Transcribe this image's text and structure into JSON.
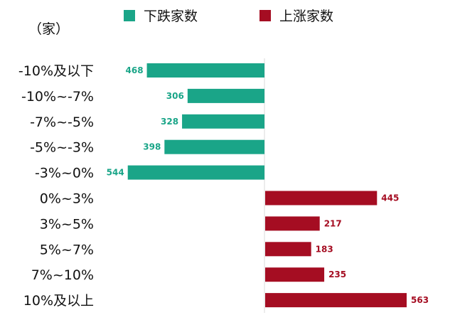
{
  "chart_data": {
    "type": "bar",
    "orientation": "horizontal",
    "unit_label": "（家）",
    "categories": [
      "-10%及以下",
      "-10%~-7%",
      "-7%~-5%",
      "-5%~-3%",
      "-3%~0%",
      "0%~3%",
      "3%~5%",
      "5%~7%",
      "7%~10%",
      "10%及以上"
    ],
    "series": [
      {
        "name": "下跌家数",
        "color": "#1aa588",
        "values": [
          468,
          306,
          328,
          398,
          544,
          null,
          null,
          null,
          null,
          null
        ]
      },
      {
        "name": "上涨家数",
        "color": "#a50d22",
        "values": [
          null,
          null,
          null,
          null,
          null,
          445,
          217,
          183,
          235,
          563
        ]
      }
    ],
    "xlim": [
      -600,
      600
    ],
    "grid": false,
    "legend_position": "top"
  }
}
